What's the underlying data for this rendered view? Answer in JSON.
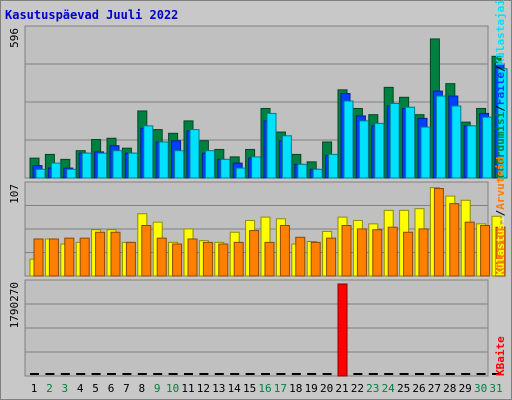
{
  "title": "Kasutuspäevad Juuli 2022",
  "legend": {
    "top": [
      "Pöördumisi",
      "/",
      "Faile",
      "/",
      "Külastajaid"
    ],
    "middle": [
      "Külastusi",
      "/",
      "Arvuteid"
    ],
    "bottom": [
      "KBaite"
    ]
  },
  "colors": {
    "background": "#c0c0c0",
    "hits": "#008040",
    "files": "#0040ff",
    "pages": "#00e0ff",
    "visits": "#ffff00",
    "sites": "#ff8000",
    "kbytes": "#ff0000",
    "weekday_label": "#000000",
    "weekend_label": "#008040",
    "title": "#0000cc"
  },
  "chart_data": [
    {
      "type": "bar",
      "panel": "top",
      "scale_max_label": "596",
      "ylim": [
        0,
        596
      ],
      "categories": [
        "1",
        "2",
        "3",
        "4",
        "5",
        "6",
        "7",
        "8",
        "9",
        "10",
        "11",
        "12",
        "13",
        "14",
        "15",
        "16",
        "17",
        "18",
        "19",
        "20",
        "21",
        "22",
        "23",
        "24",
        "25",
        "26",
        "27",
        "28",
        "29",
        "30",
        "31"
      ],
      "series": [
        {
          "name": "Pöördumisi",
          "values": [
            80,
            95,
            75,
            110,
            155,
            160,
            120,
            270,
            195,
            180,
            230,
            150,
            115,
            85,
            115,
            280,
            185,
            95,
            65,
            145,
            355,
            280,
            255,
            365,
            325,
            255,
            560,
            380,
            225,
            280,
            490
          ]
        },
        {
          "name": "Faile",
          "values": [
            50,
            40,
            40,
            100,
            105,
            130,
            100,
            200,
            145,
            150,
            190,
            100,
            75,
            60,
            80,
            230,
            150,
            55,
            35,
            90,
            340,
            250,
            210,
            290,
            280,
            240,
            350,
            330,
            210,
            260,
            460
          ]
        },
        {
          "name": "Külastajaid",
          "values": [
            35,
            60,
            35,
            100,
            100,
            110,
            100,
            210,
            145,
            110,
            195,
            110,
            75,
            40,
            85,
            260,
            170,
            55,
            35,
            95,
            310,
            230,
            220,
            300,
            285,
            205,
            330,
            290,
            210,
            245,
            440
          ]
        }
      ]
    },
    {
      "type": "bar",
      "panel": "middle",
      "scale_max_label": "107",
      "ylim": [
        0,
        107
      ],
      "categories": [
        "1",
        "2",
        "3",
        "4",
        "5",
        "6",
        "7",
        "8",
        "9",
        "10",
        "11",
        "12",
        "13",
        "14",
        "15",
        "16",
        "17",
        "18",
        "19",
        "20",
        "21",
        "22",
        "23",
        "24",
        "25",
        "26",
        "27",
        "28",
        "29",
        "30",
        "31"
      ],
      "series": [
        {
          "name": "Külastusi",
          "values": [
            20,
            44,
            38,
            40,
            55,
            55,
            40,
            74,
            64,
            40,
            56,
            42,
            40,
            52,
            66,
            70,
            68,
            38,
            41,
            53,
            70,
            66,
            62,
            78,
            78,
            80,
            105,
            95,
            90,
            62,
            71
          ]
        },
        {
          "name": "Arvuteid",
          "values": [
            44,
            44,
            45,
            45,
            52,
            52,
            40,
            60,
            45,
            38,
            44,
            40,
            38,
            40,
            54,
            40,
            60,
            46,
            40,
            45,
            60,
            56,
            55,
            58,
            52,
            56,
            104,
            86,
            64,
            60,
            58
          ]
        }
      ]
    },
    {
      "type": "bar",
      "panel": "bottom",
      "scale_max_label": "1790270",
      "ylim": [
        0,
        1790270
      ],
      "categories": [
        "1",
        "2",
        "3",
        "4",
        "5",
        "6",
        "7",
        "8",
        "9",
        "10",
        "11",
        "12",
        "13",
        "14",
        "15",
        "16",
        "17",
        "18",
        "19",
        "20",
        "21",
        "22",
        "23",
        "24",
        "25",
        "26",
        "27",
        "28",
        "29",
        "30",
        "31"
      ],
      "series": [
        {
          "name": "KBaite",
          "values": [
            0,
            0,
            0,
            0,
            0,
            0,
            0,
            0,
            0,
            0,
            0,
            0,
            0,
            0,
            0,
            0,
            0,
            0,
            0,
            0,
            1790270,
            0,
            0,
            0,
            0,
            0,
            0,
            0,
            0,
            0,
            0
          ]
        }
      ]
    }
  ],
  "weekend_days": [
    "2",
    "3",
    "9",
    "10",
    "16",
    "17",
    "23",
    "24",
    "30",
    "31"
  ]
}
